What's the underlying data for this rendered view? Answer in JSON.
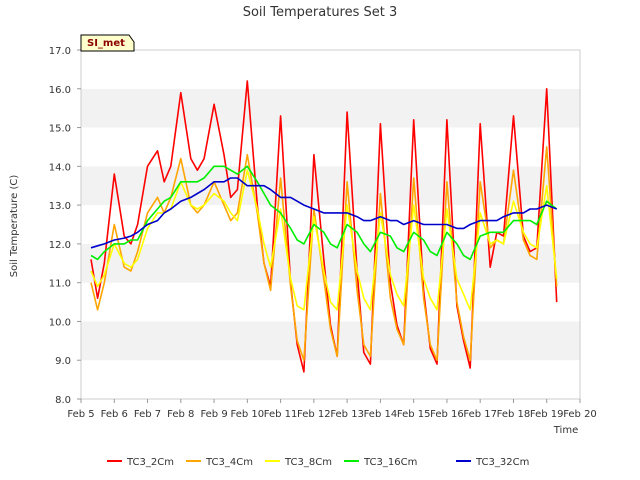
{
  "chart_data": {
    "type": "line",
    "title": "Soil Temperatures Set 3",
    "xlabel": "Time",
    "ylabel": "Soil Temperature (C)",
    "station_tag": "SI_met",
    "ylim": [
      8.0,
      17.0
    ],
    "yticks": [
      "8.0",
      "9.0",
      "10.0",
      "11.0",
      "12.0",
      "13.0",
      "14.0",
      "15.0",
      "16.0",
      "17.0"
    ],
    "xlim": [
      5,
      20
    ],
    "xticks": [
      "Feb 5",
      "Feb 6",
      "Feb 7",
      "Feb 8",
      "Feb 9",
      "Feb 10",
      "Feb 11",
      "Feb 12",
      "Feb 13",
      "Feb 14",
      "Feb 15",
      "Feb 16",
      "Feb 17",
      "Feb 18",
      "Feb 19",
      "Feb 20"
    ],
    "grid": "horizontal bands",
    "legend_position": "bottom",
    "x": [
      5.3,
      5.5,
      5.7,
      6.0,
      6.3,
      6.5,
      6.7,
      7.0,
      7.3,
      7.5,
      7.7,
      8.0,
      8.3,
      8.5,
      8.7,
      9.0,
      9.3,
      9.5,
      9.7,
      10.0,
      10.3,
      10.5,
      10.7,
      11.0,
      11.3,
      11.5,
      11.7,
      12.0,
      12.3,
      12.5,
      12.7,
      13.0,
      13.3,
      13.5,
      13.7,
      14.0,
      14.3,
      14.5,
      14.7,
      15.0,
      15.3,
      15.5,
      15.7,
      16.0,
      16.3,
      16.5,
      16.7,
      17.0,
      17.3,
      17.5,
      17.7,
      18.0,
      18.3,
      18.5,
      18.7,
      19.0,
      19.3
    ],
    "series": [
      {
        "name": "TC3_2Cm",
        "color": "#ff0000",
        "values": [
          11.6,
          10.6,
          11.5,
          13.8,
          12.2,
          12.0,
          12.5,
          14.0,
          14.4,
          13.6,
          14.0,
          15.9,
          14.2,
          13.9,
          14.2,
          15.6,
          14.3,
          13.2,
          13.4,
          16.2,
          13.0,
          11.5,
          10.9,
          15.3,
          11.0,
          9.4,
          8.7,
          14.3,
          11.6,
          9.9,
          9.1,
          15.4,
          11.3,
          9.2,
          8.9,
          15.1,
          11.0,
          9.9,
          9.4,
          15.2,
          10.8,
          9.3,
          8.9,
          15.2,
          10.4,
          9.5,
          8.8,
          15.1,
          11.4,
          12.3,
          12.2,
          15.3,
          12.2,
          11.8,
          11.9,
          16.0,
          10.5
        ]
      },
      {
        "name": "TC3_4Cm",
        "color": "#ffa500",
        "values": [
          11.0,
          10.3,
          11.0,
          12.5,
          11.4,
          11.3,
          11.8,
          12.8,
          13.2,
          12.8,
          13.2,
          14.2,
          13.0,
          12.8,
          13.0,
          13.6,
          13.0,
          12.6,
          12.8,
          14.3,
          12.8,
          11.5,
          10.8,
          13.7,
          10.9,
          9.5,
          9.0,
          12.9,
          11.1,
          9.8,
          9.1,
          13.6,
          10.8,
          9.4,
          9.1,
          13.3,
          10.6,
          9.8,
          9.4,
          13.7,
          10.6,
          9.4,
          9.0,
          13.6,
          10.5,
          9.6,
          9.0,
          13.6,
          11.9,
          12.1,
          12.0,
          13.9,
          12.1,
          11.7,
          11.6,
          14.5,
          10.9
        ]
      },
      {
        "name": "TC3_8Cm",
        "color": "#ffff00",
        "values": [
          11.3,
          10.9,
          11.2,
          12.0,
          11.5,
          11.4,
          11.6,
          12.4,
          12.8,
          12.8,
          12.9,
          13.6,
          13.0,
          12.9,
          13.0,
          13.3,
          13.1,
          12.8,
          12.6,
          13.9,
          12.9,
          12.0,
          11.4,
          12.9,
          11.1,
          10.4,
          10.3,
          12.7,
          11.3,
          10.5,
          10.3,
          13.0,
          11.3,
          10.6,
          10.3,
          12.8,
          11.2,
          10.7,
          10.4,
          13.0,
          11.1,
          10.6,
          10.3,
          12.9,
          11.1,
          10.7,
          10.3,
          12.8,
          12.0,
          12.1,
          12.0,
          13.1,
          12.3,
          12.0,
          11.9,
          13.5,
          11.1
        ]
      },
      {
        "name": "TC3_16Cm",
        "color": "#00ee00",
        "values": [
          11.7,
          11.6,
          11.8,
          12.0,
          12.0,
          12.1,
          12.1,
          12.6,
          12.9,
          13.1,
          13.2,
          13.6,
          13.6,
          13.6,
          13.7,
          14.0,
          14.0,
          13.9,
          13.8,
          14.0,
          13.6,
          13.3,
          13.0,
          12.8,
          12.4,
          12.1,
          12.0,
          12.5,
          12.3,
          12.0,
          11.9,
          12.5,
          12.3,
          12.0,
          11.8,
          12.3,
          12.2,
          11.9,
          11.8,
          12.3,
          12.1,
          11.8,
          11.7,
          12.3,
          12.0,
          11.7,
          11.6,
          12.2,
          12.3,
          12.3,
          12.3,
          12.6,
          12.6,
          12.6,
          12.5,
          13.1,
          12.9
        ]
      },
      {
        "name": "TC3_32Cm",
        "color": "#0000cc",
        "values": [
          11.9,
          11.95,
          12.0,
          12.1,
          12.15,
          12.2,
          12.3,
          12.5,
          12.6,
          12.8,
          12.9,
          13.1,
          13.2,
          13.3,
          13.4,
          13.6,
          13.6,
          13.7,
          13.7,
          13.5,
          13.5,
          13.5,
          13.4,
          13.2,
          13.2,
          13.1,
          13.0,
          12.9,
          12.8,
          12.8,
          12.8,
          12.8,
          12.7,
          12.6,
          12.6,
          12.7,
          12.6,
          12.6,
          12.5,
          12.6,
          12.5,
          12.5,
          12.5,
          12.5,
          12.4,
          12.4,
          12.5,
          12.6,
          12.6,
          12.6,
          12.7,
          12.8,
          12.8,
          12.9,
          12.9,
          13.0,
          12.9
        ]
      }
    ]
  }
}
